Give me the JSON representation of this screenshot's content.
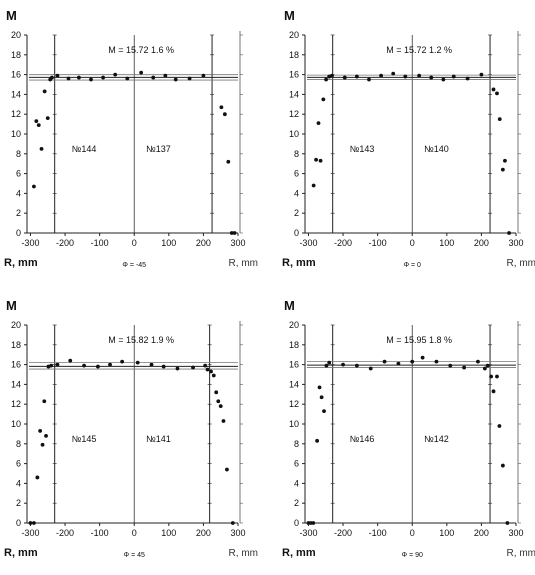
{
  "chart_data": [
    {
      "type": "scatter",
      "ylabel": "M",
      "xlabel_left": "R, mm",
      "xlabel_right": "R, mm",
      "angle_label": "Φ = -45",
      "annotation": "M = 15.72   1.6 %",
      "labels_left": "№144",
      "labels_right": "№137",
      "xlim": [
        -310,
        300
      ],
      "ylim": [
        0,
        20
      ],
      "xticks": [
        "-300",
        "-200",
        "-100",
        "0",
        "100",
        "200",
        "300"
      ],
      "yticks": [
        "0",
        "2",
        "4",
        "6",
        "8",
        "10",
        "12",
        "14",
        "16",
        "18",
        "20"
      ],
      "mean": 15.72,
      "band": [
        15.45,
        15.99
      ],
      "edges": [
        -230,
        225
      ],
      "points": [
        [
          -290,
          4.7
        ],
        [
          -283,
          11.3
        ],
        [
          -276,
          10.9
        ],
        [
          -268,
          8.5
        ],
        [
          -259,
          14.3
        ],
        [
          -250,
          11.6
        ],
        [
          -243,
          15.5
        ],
        [
          -238,
          15.7
        ],
        [
          -222,
          15.9
        ],
        [
          -190,
          15.6
        ],
        [
          -160,
          15.7
        ],
        [
          -125,
          15.5
        ],
        [
          -90,
          15.7
        ],
        [
          -55,
          16.0
        ],
        [
          -20,
          15.6
        ],
        [
          20,
          16.2
        ],
        [
          55,
          15.7
        ],
        [
          90,
          15.9
        ],
        [
          120,
          15.5
        ],
        [
          160,
          15.6
        ],
        [
          200,
          15.9
        ],
        [
          252,
          12.7
        ],
        [
          262,
          12.0
        ],
        [
          272,
          7.2
        ],
        [
          282,
          0.0
        ],
        [
          290,
          0.0
        ]
      ]
    },
    {
      "type": "scatter",
      "ylabel": "M",
      "xlabel_left": "R, mm",
      "xlabel_right": "R, mm",
      "angle_label": "Φ = 0",
      "annotation": "M = 15.72   1.2 %",
      "labels_left": "№143",
      "labels_right": "№140",
      "xlim": [
        -310,
        300
      ],
      "ylim": [
        0,
        20
      ],
      "xticks": [
        "-300",
        "-200",
        "-100",
        "0",
        "100",
        "200",
        "300"
      ],
      "yticks": [
        "0",
        "2",
        "4",
        "6",
        "8",
        "10",
        "12",
        "14",
        "16",
        "18",
        "20"
      ],
      "mean": 15.72,
      "band": [
        15.5,
        15.95
      ],
      "edges": [
        -230,
        225
      ],
      "points": [
        [
          -285,
          4.8
        ],
        [
          -278,
          7.4
        ],
        [
          -271,
          11.1
        ],
        [
          -265,
          7.3
        ],
        [
          -257,
          13.5
        ],
        [
          -249,
          15.5
        ],
        [
          -240,
          15.8
        ],
        [
          -232,
          15.9
        ],
        [
          -195,
          15.7
        ],
        [
          -160,
          15.8
        ],
        [
          -125,
          15.5
        ],
        [
          -90,
          15.9
        ],
        [
          -55,
          16.1
        ],
        [
          -20,
          15.8
        ],
        [
          20,
          15.9
        ],
        [
          55,
          15.7
        ],
        [
          90,
          15.5
        ],
        [
          120,
          15.8
        ],
        [
          160,
          15.6
        ],
        [
          200,
          16.0
        ],
        [
          235,
          14.5
        ],
        [
          245,
          14.1
        ],
        [
          253,
          11.5
        ],
        [
          262,
          6.4
        ],
        [
          268,
          7.3
        ],
        [
          280,
          0.0
        ]
      ]
    },
    {
      "type": "scatter",
      "ylabel": "M",
      "xlabel_left": "R, mm",
      "xlabel_right": "R, mm",
      "angle_label": "Φ = 45",
      "annotation": "M = 15.82   1.9 %",
      "labels_left": "№145",
      "labels_right": "№141",
      "xlim": [
        -310,
        300
      ],
      "ylim": [
        0,
        20
      ],
      "xticks": [
        "-300",
        "-200",
        "-100",
        "0",
        "100",
        "200",
        "300"
      ],
      "yticks": [
        "0",
        "2",
        "4",
        "6",
        "8",
        "10",
        "12",
        "14",
        "16",
        "18",
        "20"
      ],
      "mean": 15.82,
      "band": [
        15.55,
        16.2
      ],
      "edges": [
        -230,
        218
      ],
      "points": [
        [
          -300,
          0.0
        ],
        [
          -290,
          0.0
        ],
        [
          -280,
          4.6
        ],
        [
          -272,
          9.3
        ],
        [
          -265,
          7.9
        ],
        [
          -260,
          12.3
        ],
        [
          -255,
          8.8
        ],
        [
          -248,
          15.8
        ],
        [
          -240,
          15.9
        ],
        [
          -222,
          16.0
        ],
        [
          -185,
          16.4
        ],
        [
          -145,
          15.9
        ],
        [
          -105,
          15.8
        ],
        [
          -70,
          16.0
        ],
        [
          -35,
          16.3
        ],
        [
          10,
          16.2
        ],
        [
          50,
          16.0
        ],
        [
          85,
          15.8
        ],
        [
          125,
          15.6
        ],
        [
          170,
          15.7
        ],
        [
          205,
          15.9
        ],
        [
          212,
          15.5
        ],
        [
          222,
          15.3
        ],
        [
          230,
          14.9
        ],
        [
          237,
          13.2
        ],
        [
          243,
          12.3
        ],
        [
          250,
          11.8
        ],
        [
          258,
          10.3
        ],
        [
          268,
          5.4
        ],
        [
          285,
          0.0
        ]
      ]
    },
    {
      "type": "scatter",
      "ylabel": "M",
      "xlabel_left": "R, mm",
      "xlabel_right": "R, mm",
      "angle_label": "Φ = 90",
      "annotation": "M = 15.95   1.8 %",
      "labels_left": "№146",
      "labels_right": "№142",
      "xlim": [
        -310,
        300
      ],
      "ylim": [
        0,
        20
      ],
      "xticks": [
        "-300",
        "-200",
        "-100",
        "0",
        "100",
        "200",
        "300"
      ],
      "yticks": [
        "0",
        "2",
        "4",
        "6",
        "8",
        "10",
        "12",
        "14",
        "16",
        "18",
        "20"
      ],
      "mean": 15.95,
      "band": [
        15.7,
        16.3
      ],
      "edges": [
        -230,
        225
      ],
      "points": [
        [
          -300,
          0.0
        ],
        [
          -293,
          0.0
        ],
        [
          -286,
          0.0
        ],
        [
          -275,
          8.3
        ],
        [
          -268,
          13.7
        ],
        [
          -262,
          12.7
        ],
        [
          -255,
          11.3
        ],
        [
          -248,
          15.9
        ],
        [
          -240,
          16.2
        ],
        [
          -200,
          16.0
        ],
        [
          -160,
          15.9
        ],
        [
          -120,
          15.6
        ],
        [
          -80,
          16.3
        ],
        [
          -40,
          16.1
        ],
        [
          0,
          16.3
        ],
        [
          30,
          16.7
        ],
        [
          70,
          16.3
        ],
        [
          110,
          15.9
        ],
        [
          150,
          15.7
        ],
        [
          190,
          16.3
        ],
        [
          210,
          15.6
        ],
        [
          218,
          15.9
        ],
        [
          228,
          14.8
        ],
        [
          235,
          13.3
        ],
        [
          245,
          14.8
        ],
        [
          252,
          9.8
        ],
        [
          262,
          5.8
        ],
        [
          275,
          0.0
        ]
      ]
    }
  ]
}
